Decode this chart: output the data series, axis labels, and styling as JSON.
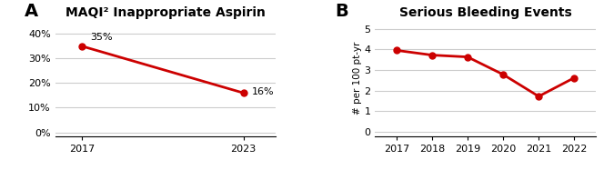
{
  "panel_A": {
    "title": "MAQI² Inappropriate Aspirin",
    "x": [
      2017,
      2023
    ],
    "y": [
      0.35,
      0.16
    ],
    "labels": [
      "35%",
      "16%"
    ],
    "yticks": [
      0.0,
      0.1,
      0.2,
      0.3,
      0.4
    ],
    "ytick_labels": [
      "0%",
      "10%",
      "20%",
      "30%",
      "40%"
    ],
    "ylim": [
      -0.015,
      0.455
    ],
    "xlim": [
      2016.0,
      2024.2
    ],
    "xticks": [
      2017,
      2023
    ],
    "line_color": "#cc0000",
    "marker": "o",
    "markersize": 5,
    "linewidth": 2.0,
    "panel_label": "A"
  },
  "panel_B": {
    "title": "Serious Bleeding Events",
    "x": [
      2017,
      2018,
      2019,
      2020,
      2021,
      2022
    ],
    "y": [
      3.95,
      3.72,
      3.63,
      2.78,
      1.72,
      2.62
    ],
    "ylabel": "# per 100 pt-yr",
    "yticks": [
      0,
      1,
      2,
      3,
      4,
      5
    ],
    "ylim": [
      -0.2,
      5.4
    ],
    "xlim": [
      2016.4,
      2022.6
    ],
    "xticks": [
      2017,
      2018,
      2019,
      2020,
      2021,
      2022
    ],
    "line_color": "#cc0000",
    "marker": "o",
    "markersize": 5,
    "linewidth": 2.0,
    "panel_label": "B"
  },
  "title_fontsize": 10,
  "tick_fontsize": 8,
  "panel_label_fontsize": 14,
  "annotation_fontsize": 8,
  "background_color": "#ffffff",
  "grid_color": "#cccccc"
}
